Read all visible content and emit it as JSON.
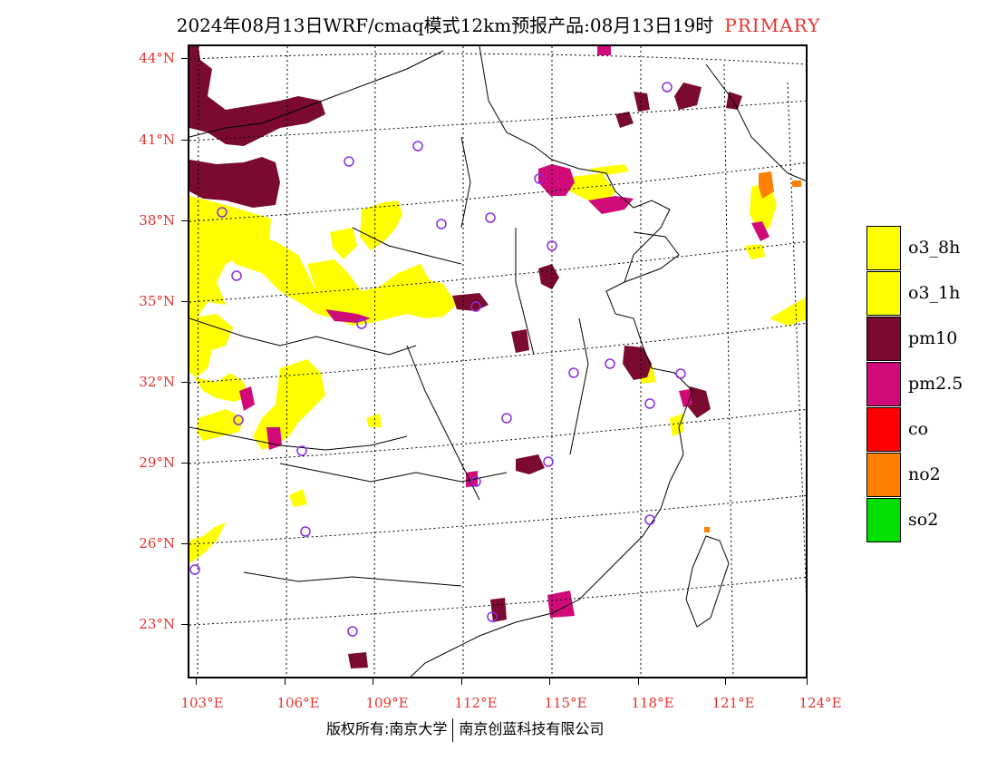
{
  "title": {
    "main": "2024年08月13日WRF/cmaq模式12km预报产品:08月13日19时",
    "tag": "PRIMARY"
  },
  "map": {
    "lat_labels": [
      "44°N",
      "41°N",
      "38°N",
      "35°N",
      "32°N",
      "29°N",
      "26°N",
      "23°N"
    ],
    "lon_labels": [
      "103°E",
      "106°E",
      "109°E",
      "112°E",
      "115°E",
      "118°E",
      "121°E",
      "124°E"
    ]
  },
  "legend": {
    "items": [
      {
        "label": "o3_8h",
        "color": "#ffff00"
      },
      {
        "label": "o3_1h",
        "color": "#ffff00"
      },
      {
        "label": "pm10",
        "color": "#7a0a2e"
      },
      {
        "label": "pm2.5",
        "color": "#d00a78"
      },
      {
        "label": "co",
        "color": "#ff0000"
      },
      {
        "label": "no2",
        "color": "#ff7f00"
      },
      {
        "label": "so2",
        "color": "#00e000"
      }
    ]
  },
  "footer": {
    "left": "版权所有:南京大学",
    "right": "南京创蓝科技有限公司"
  },
  "colors": {
    "accent_red": "#e8322d",
    "station_marker": "#8a2be2"
  }
}
